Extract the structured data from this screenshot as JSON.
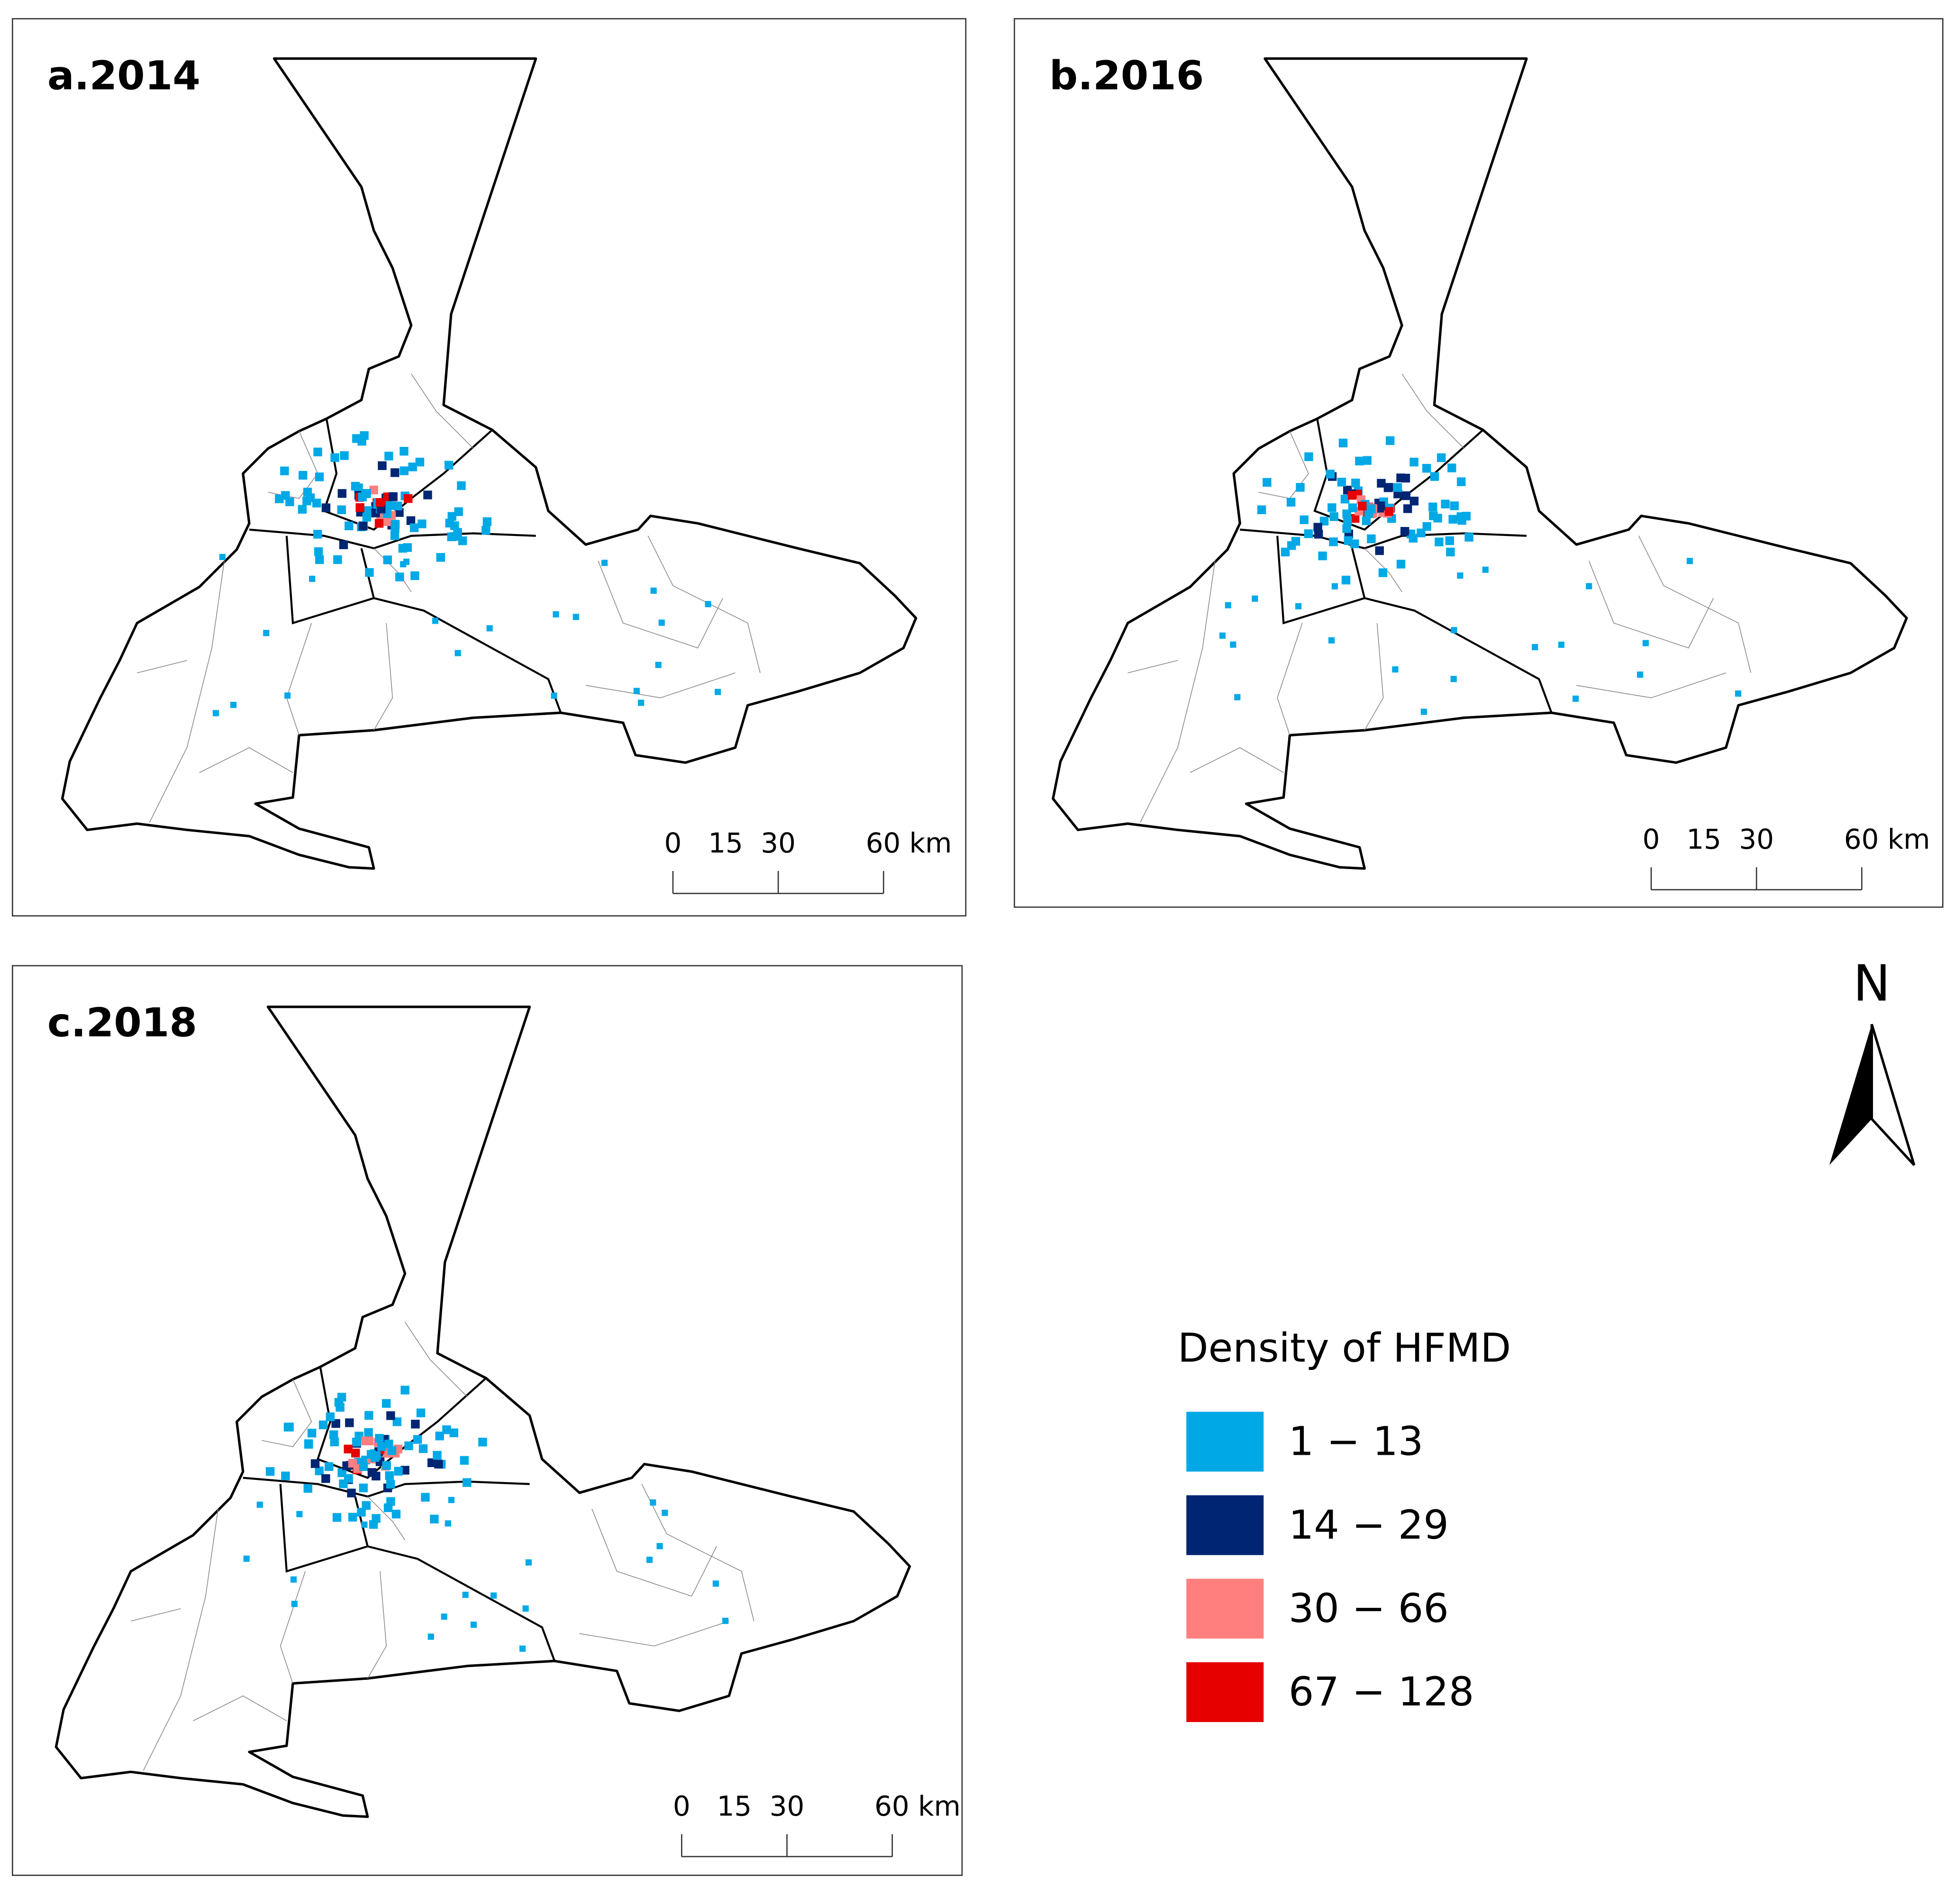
{
  "panels": [
    {
      "title": "a.2014",
      "scale_bar": {
        "labels": [
          "0",
          "15",
          "30",
          "60 km"
        ]
      }
    },
    {
      "title": "b.2016",
      "scale_bar": {
        "labels": [
          "0",
          "15",
          "30",
          "60 km"
        ]
      }
    },
    {
      "title": "c.2018",
      "scale_bar": {
        "labels": [
          "0",
          "15",
          "30",
          "60 km"
        ]
      }
    }
  ],
  "north_arrow": {
    "label": "N"
  },
  "legend": {
    "title": "Density of HFMD",
    "items": [
      {
        "label": "1 − 13",
        "color": "#00a9e6"
      },
      {
        "label": "14 − 29",
        "color": "#002673"
      },
      {
        "label": "30 − 66",
        "color": "#ff7f7f"
      },
      {
        "label": "67 − 128",
        "color": "#e60000"
      }
    ]
  }
}
